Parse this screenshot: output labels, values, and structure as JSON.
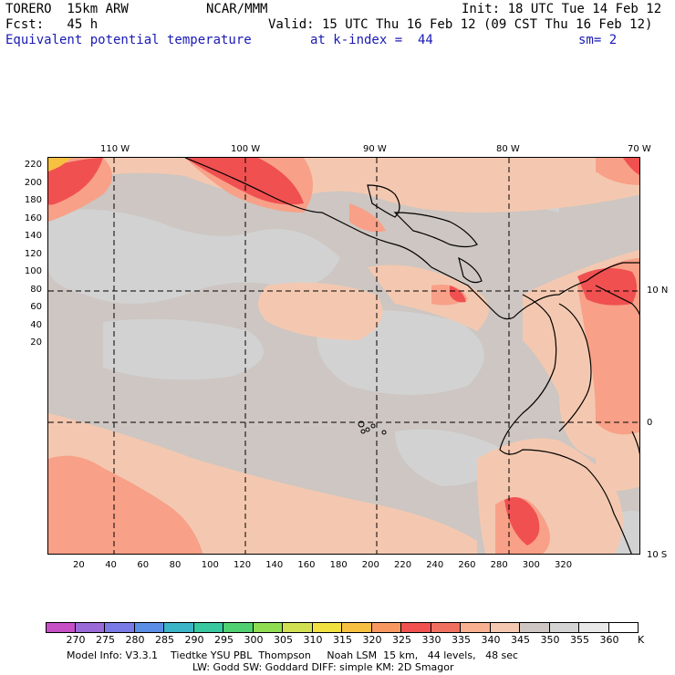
{
  "header": {
    "model": "TORERO  15km ARW",
    "org": "NCAR/MMM",
    "init": "Init: 18 UTC Tue 14 Feb 12",
    "fcst": "Fcst:   45 h",
    "valid": "Valid: 15 UTC Thu 16 Feb 12 (09 CST Thu 16 Feb 12)",
    "field": "Equivalent potential temperature",
    "level": "at k-index =  44",
    "smooth": "sm= 2"
  },
  "map": {
    "top_lon_labels": [
      "110 W",
      "100 W",
      "90 W",
      "80 W",
      "70 W"
    ],
    "right_lat_labels": [
      "10 N",
      "0",
      "10 S"
    ],
    "x_ticks": [
      "20",
      "40",
      "60",
      "80",
      "100",
      "120",
      "140",
      "160",
      "180",
      "200",
      "220",
      "240",
      "260",
      "280",
      "300",
      "320"
    ],
    "y_ticks": [
      "220",
      "200",
      "180",
      "160",
      "140",
      "120",
      "100",
      "80",
      "60",
      "40",
      "20"
    ],
    "background_color": "#cdc6c2"
  },
  "colorbar": {
    "unit": "K",
    "labels": [
      "270",
      "275",
      "280",
      "285",
      "290",
      "295",
      "300",
      "305",
      "310",
      "315",
      "320",
      "325",
      "330",
      "335",
      "340",
      "345",
      "350",
      "355",
      "360"
    ],
    "colors": [
      "#c64fc6",
      "#9a6ad8",
      "#7a7ae6",
      "#5a8ee6",
      "#3cb4c8",
      "#38c8a0",
      "#50d070",
      "#90dc50",
      "#d0e050",
      "#f0e040",
      "#f8c040",
      "#f89860",
      "#f05050",
      "#f07060",
      "#f8b090",
      "#f4c8b0",
      "#cdc6c2",
      "#d4d4d4",
      "#e8e8e8",
      "#ffffff"
    ]
  },
  "footer": {
    "line1": "Model Info: V3.3.1    Tiedtke YSU PBL  Thompson     Noah LSM  15 km,   44 levels,   48 sec",
    "line2": "LW: Godd SW: Goddard DIFF: simple KM: 2D Smagor"
  }
}
